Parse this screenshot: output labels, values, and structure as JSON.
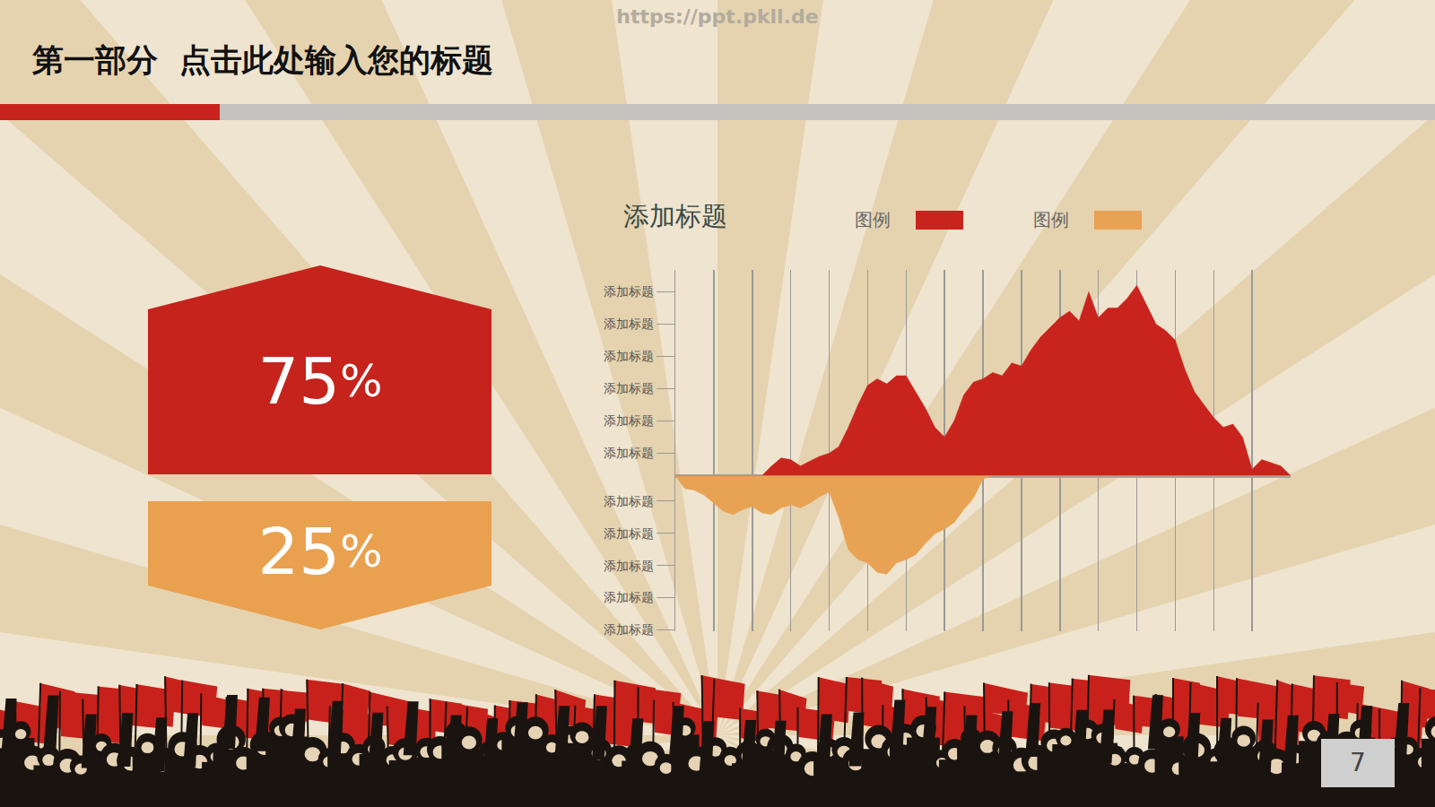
{
  "header": {
    "title": "第一部分  点击此处输入您的标题",
    "watermark": "https://ppt.pkll.de",
    "page_number": "7"
  },
  "boxes": [
    {
      "label": "75%",
      "color": "#c5231c"
    },
    {
      "label": "25%",
      "color": "#e9a150"
    }
  ],
  "chart_data": {
    "type": "area",
    "title": "添加标题",
    "x": [
      0,
      0.25,
      0.5,
      0.75,
      1,
      1.25,
      1.5,
      1.75,
      2,
      2.25,
      2.5,
      2.75,
      3,
      3.25,
      3.5,
      3.75,
      4,
      4.25,
      4.5,
      4.75,
      5,
      5.25,
      5.5,
      5.75,
      6,
      6.25,
      6.5,
      6.75,
      7,
      7.25,
      7.5,
      7.75,
      8,
      8.25,
      8.5,
      8.75,
      9,
      9.25,
      9.5,
      9.75,
      10,
      10.25,
      10.5,
      10.75,
      11,
      11.25,
      11.5,
      11.75,
      12,
      12.25,
      12.5,
      12.75,
      13,
      13.25,
      13.5,
      13.75,
      14,
      14.25,
      14.5,
      14.75,
      15,
      15.25,
      15.5,
      15.75,
      16
    ],
    "series": [
      {
        "name": "图例",
        "color": "#c8241d",
        "values": [
          0,
          0,
          0,
          0,
          0,
          0,
          0,
          0,
          0,
          0,
          0.3,
          0.55,
          0.5,
          0.3,
          0.45,
          0.6,
          0.7,
          0.9,
          1.5,
          2.2,
          2.8,
          3.0,
          2.85,
          3.1,
          3.1,
          2.6,
          2.1,
          1.5,
          1.2,
          1.7,
          2.5,
          2.9,
          3.0,
          3.2,
          3.1,
          3.5,
          3.4,
          3.9,
          4.3,
          4.6,
          4.9,
          5.1,
          4.8,
          5.7,
          4.9,
          5.2,
          5.2,
          5.5,
          5.9,
          5.3,
          4.7,
          4.5,
          4.2,
          3.3,
          2.6,
          2.2,
          1.8,
          1.5,
          1.6,
          1.2,
          0.2,
          0.5,
          0.4,
          0.3,
          0
        ]
      },
      {
        "name": "图例",
        "color": "#e8a253",
        "values": [
          0,
          -0.4,
          -0.45,
          -0.6,
          -0.85,
          -1.1,
          -1.2,
          -1.05,
          -0.95,
          -1.15,
          -1.2,
          -1.0,
          -0.9,
          -1.0,
          -0.85,
          -0.65,
          -0.5,
          -1.3,
          -2.3,
          -2.6,
          -2.7,
          -3.0,
          -3.05,
          -2.7,
          -2.6,
          -2.45,
          -2.1,
          -1.8,
          -1.65,
          -1.45,
          -1.05,
          -0.7,
          -0.1,
          0,
          0,
          0,
          0,
          0,
          0,
          0,
          0,
          0,
          0,
          0,
          0,
          0,
          0,
          0,
          0,
          0,
          0,
          0,
          0,
          0,
          0,
          0,
          0,
          0,
          0,
          0,
          0,
          0,
          0,
          0,
          0
        ]
      }
    ],
    "xlim": [
      0,
      16
    ],
    "xticks": [
      0,
      1,
      2,
      3,
      4,
      5,
      6,
      7,
      8,
      9,
      10,
      11,
      12,
      13,
      14,
      15,
      16
    ],
    "ylim": [
      -4.82,
      6.38
    ],
    "yticks": [
      {
        "value": 5.7,
        "label": "添加标题"
      },
      {
        "value": 4.7,
        "label": "添加标题"
      },
      {
        "value": 3.7,
        "label": "添加标题"
      },
      {
        "value": 2.7,
        "label": "添加标题"
      },
      {
        "value": 1.7,
        "label": "添加标题"
      },
      {
        "value": 0.7,
        "label": "添加标题"
      },
      {
        "value": -0.78,
        "label": "添加标题"
      },
      {
        "value": -1.78,
        "label": "添加标题"
      },
      {
        "value": -2.78,
        "label": "添加标题"
      },
      {
        "value": -3.78,
        "label": "添加标题"
      },
      {
        "value": -4.78,
        "label": "添加标题"
      }
    ],
    "grid": "x",
    "legend": "top",
    "tick_labels": "y"
  }
}
